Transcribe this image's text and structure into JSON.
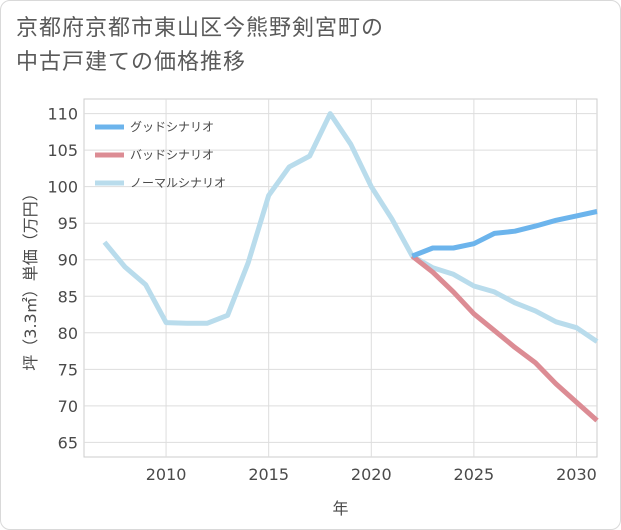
{
  "title_line1": "京都府京都市東山区今熊野剣宮町の",
  "title_line2": "中古戸建ての価格推移",
  "chart_data": {
    "type": "line",
    "xlabel": "年",
    "ylabel": "坪（3.3㎡）単価（万円）",
    "xlim": [
      2006,
      2031
    ],
    "ylim": [
      63,
      112
    ],
    "xticks": [
      2010,
      2015,
      2020,
      2025,
      2030
    ],
    "yticks": [
      65,
      70,
      75,
      80,
      85,
      90,
      95,
      100,
      105,
      110
    ],
    "grid": true,
    "legend_position": "top-left",
    "series": [
      {
        "name": "グッドシナリオ",
        "color": "#6cb4ec",
        "x": [
          2022,
          2023,
          2024,
          2025,
          2026,
          2027,
          2028,
          2029,
          2030,
          2031
        ],
        "y": [
          90.5,
          91.6,
          91.6,
          92.2,
          93.6,
          93.9,
          94.6,
          95.4,
          96.0,
          96.6
        ]
      },
      {
        "name": "バッドシナリオ",
        "color": "#dc8c94",
        "x": [
          2022,
          2023,
          2024,
          2025,
          2026,
          2027,
          2028,
          2029,
          2030,
          2031
        ],
        "y": [
          90.5,
          88.3,
          85.6,
          82.6,
          80.3,
          78.0,
          75.9,
          73.0,
          70.5,
          68.0
        ]
      },
      {
        "name": "ノーマルシナリオ",
        "color": "#b9dcec",
        "x": [
          2007,
          2008,
          2009,
          2010,
          2011,
          2012,
          2013,
          2014,
          2015,
          2016,
          2017,
          2018,
          2019,
          2020,
          2021,
          2022,
          2023,
          2024,
          2025,
          2026,
          2027,
          2028,
          2029,
          2030,
          2031
        ],
        "y": [
          92.4,
          89.0,
          86.6,
          81.4,
          81.3,
          81.3,
          82.4,
          89.6,
          98.8,
          102.7,
          104.2,
          110.0,
          105.8,
          100.0,
          95.6,
          90.5,
          88.9,
          88.0,
          86.4,
          85.6,
          84.1,
          83.0,
          81.5,
          80.7,
          78.8
        ]
      }
    ]
  }
}
